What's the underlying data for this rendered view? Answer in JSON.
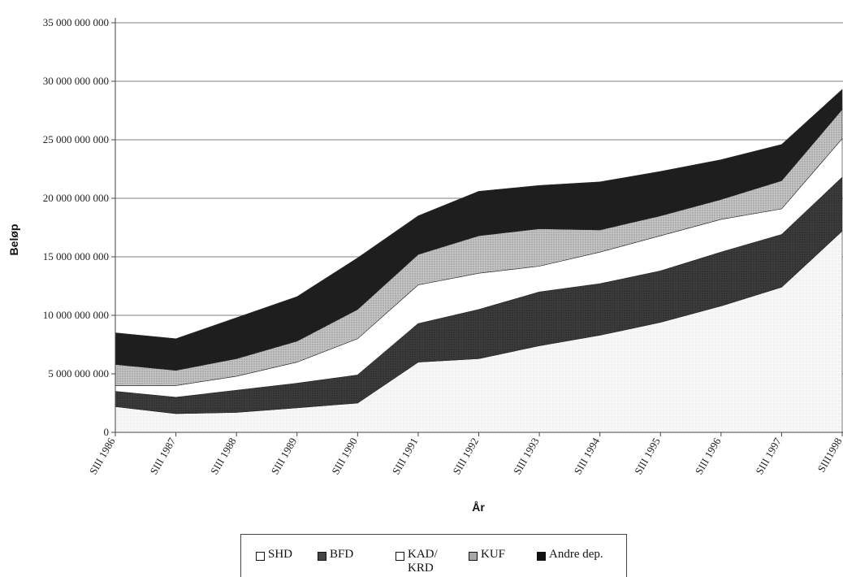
{
  "chart_data": {
    "type": "area",
    "stacked": true,
    "title": "",
    "xlabel": "År",
    "ylabel": "Beløp",
    "ylim": [
      0,
      35000000000
    ],
    "yticks": [
      0,
      5000000000,
      10000000000,
      15000000000,
      20000000000,
      25000000000,
      30000000000,
      35000000000
    ],
    "ytick_labels": [
      "0",
      "5 000 000 000",
      "10 000 000 000",
      "15 000 000 000",
      "20 000 000 000",
      "25 000 000 000",
      "30 000 000 000",
      "35 000 000 000"
    ],
    "grid": true,
    "legend_position": "bottom",
    "categories": [
      "SIII 1986",
      "SIII 1987",
      "SIII 1988",
      "SIII 1989",
      "SIII 1990",
      "SIII 1991",
      "SIII 1992",
      "SIII 1993",
      "SIII 1994",
      "SIII 1995",
      "SIII 1996",
      "SIII 1997",
      "SIII1998"
    ],
    "series": [
      {
        "name": "SHD",
        "color": "#f4f4f4",
        "values": [
          2200000000,
          1600000000,
          1700000000,
          2100000000,
          2500000000,
          6000000000,
          6300000000,
          7400000000,
          8300000000,
          9400000000,
          10800000000,
          12400000000,
          17200000000
        ]
      },
      {
        "name": "BFD",
        "color": "#3a3a3a",
        "values": [
          1300000000,
          1400000000,
          1900000000,
          2100000000,
          2400000000,
          3300000000,
          4200000000,
          4600000000,
          4400000000,
          4400000000,
          4600000000,
          4500000000,
          4600000000
        ]
      },
      {
        "name": "KAD/\nKRD",
        "color": "#ffffff",
        "values": [
          500000000,
          1000000000,
          1200000000,
          1800000000,
          3100000000,
          3300000000,
          3100000000,
          2200000000,
          2700000000,
          3000000000,
          2800000000,
          2200000000,
          3300000000
        ]
      },
      {
        "name": "KUF",
        "color": "#b4b4b4",
        "values": [
          1800000000,
          1300000000,
          1500000000,
          1800000000,
          2500000000,
          2600000000,
          3200000000,
          3200000000,
          1900000000,
          1700000000,
          1700000000,
          2400000000,
          2500000000
        ]
      },
      {
        "name": "Andre dep.",
        "color": "#1a1a1a",
        "values": [
          2700000000,
          2700000000,
          3500000000,
          3800000000,
          4400000000,
          3300000000,
          3800000000,
          3700000000,
          4100000000,
          3800000000,
          3400000000,
          3100000000,
          1700000000
        ]
      }
    ]
  }
}
